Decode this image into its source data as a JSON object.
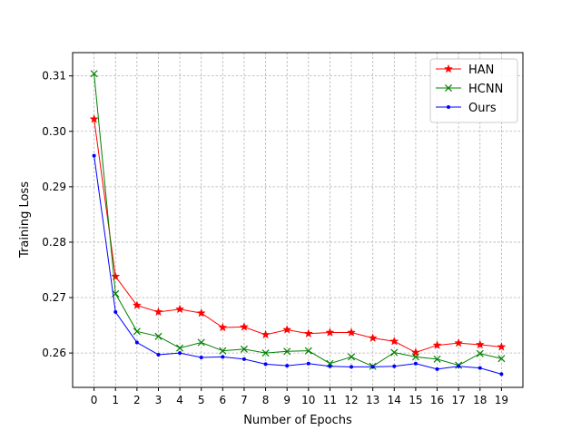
{
  "chart_data": {
    "type": "line",
    "title": "",
    "xlabel": "Number of Epochs",
    "ylabel": "Training Loss",
    "x": [
      0,
      1,
      2,
      3,
      4,
      5,
      6,
      7,
      8,
      9,
      10,
      11,
      12,
      13,
      14,
      15,
      16,
      17,
      18,
      19
    ],
    "xlim": [
      -1,
      20
    ],
    "ylim": [
      0.2538,
      0.3142
    ],
    "yticks": [
      "0.26",
      "0.27",
      "0.28",
      "0.29",
      "0.30",
      "0.31"
    ],
    "yticks_values": [
      0.26,
      0.27,
      0.28,
      0.29,
      0.3,
      0.31
    ],
    "grid": true,
    "legend_position": "top-right",
    "series": [
      {
        "name": "HAN",
        "color": "#ff0000",
        "marker": "star",
        "values": [
          0.3022,
          0.2738,
          0.2686,
          0.2674,
          0.2679,
          0.2672,
          0.2646,
          0.2647,
          0.2633,
          0.2642,
          0.2635,
          0.2637,
          0.2637,
          0.2627,
          0.2621,
          0.2601,
          0.2614,
          0.2618,
          0.2615,
          0.2611
        ]
      },
      {
        "name": "HCNN",
        "color": "#008000",
        "marker": "x",
        "values": [
          0.3104,
          0.2707,
          0.2639,
          0.263,
          0.2609,
          0.2619,
          0.2604,
          0.2607,
          0.26,
          0.2603,
          0.2604,
          0.2581,
          0.2593,
          0.2576,
          0.2601,
          0.2593,
          0.2589,
          0.2578,
          0.2599,
          0.259
        ]
      },
      {
        "name": "Ours",
        "color": "#0000ff",
        "marker": "dot",
        "values": [
          0.2956,
          0.2674,
          0.2619,
          0.2597,
          0.26,
          0.2592,
          0.2593,
          0.2589,
          0.258,
          0.2577,
          0.2581,
          0.2576,
          0.2575,
          0.2575,
          0.2576,
          0.2581,
          0.2571,
          0.2576,
          0.2573,
          0.2562
        ]
      }
    ]
  }
}
